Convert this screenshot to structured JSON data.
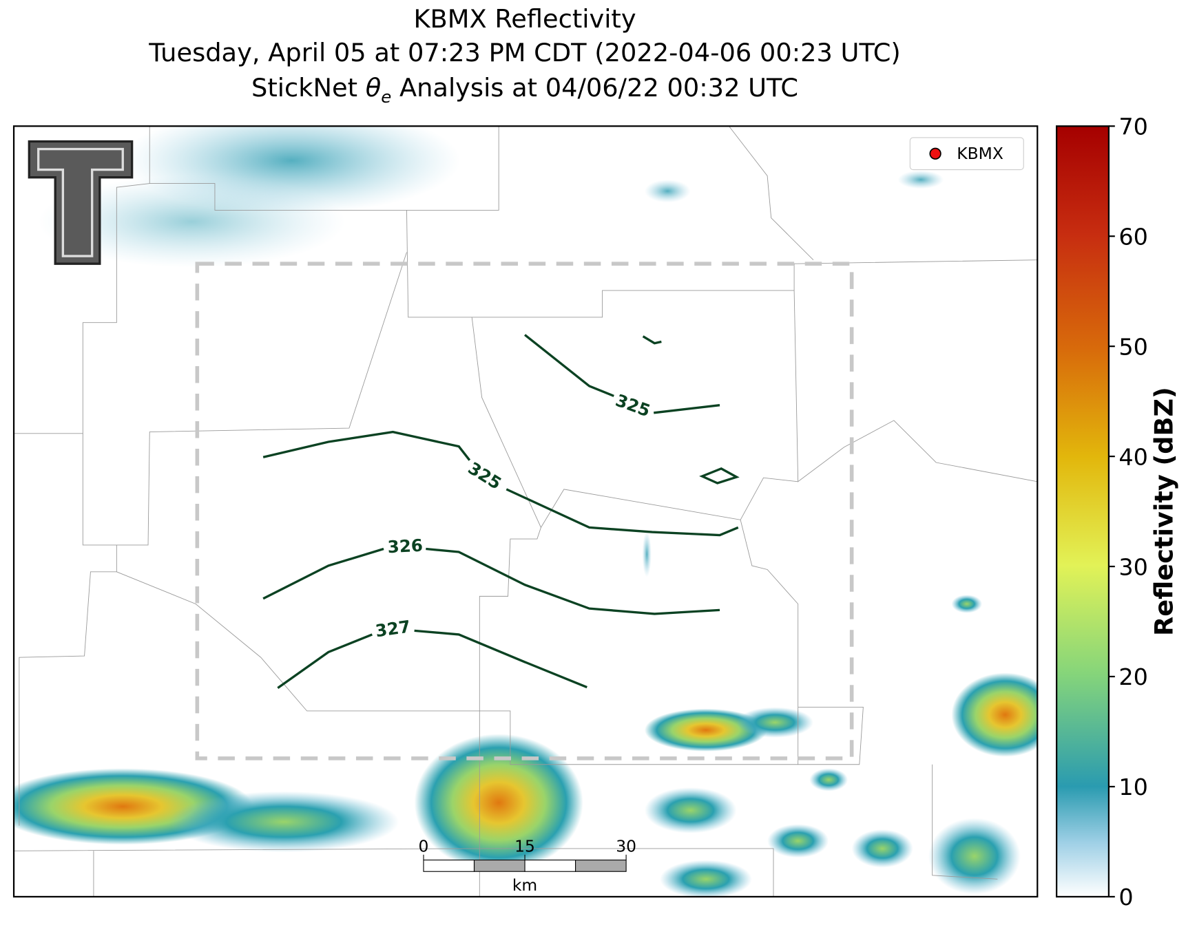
{
  "header": {
    "title": "KBMX Reflectivity",
    "subtitle": "Tuesday, April 05 at 07:23 PM CDT (2022-04-06 00:23 UTC)",
    "analysis": {
      "prefix": "StickNet ",
      "symbol": "θ",
      "subscript": "e",
      "suffix": " Analysis at 04/06/22 00:32 UTC"
    }
  },
  "legend": {
    "label": "KBMX",
    "color": "#ee1111"
  },
  "contours": [
    {
      "value": 325
    },
    {
      "value": 325
    },
    {
      "value": 326
    },
    {
      "value": 327
    }
  ],
  "scale_bar": {
    "unit": "km",
    "lim": [
      0,
      30
    ],
    "ticks": [
      0,
      15,
      30
    ]
  },
  "colorbar": {
    "label": "Reflectivity (dBZ)",
    "lim": [
      0,
      70
    ],
    "ticks": [
      0,
      10,
      20,
      30,
      40,
      50,
      60,
      70
    ]
  }
}
